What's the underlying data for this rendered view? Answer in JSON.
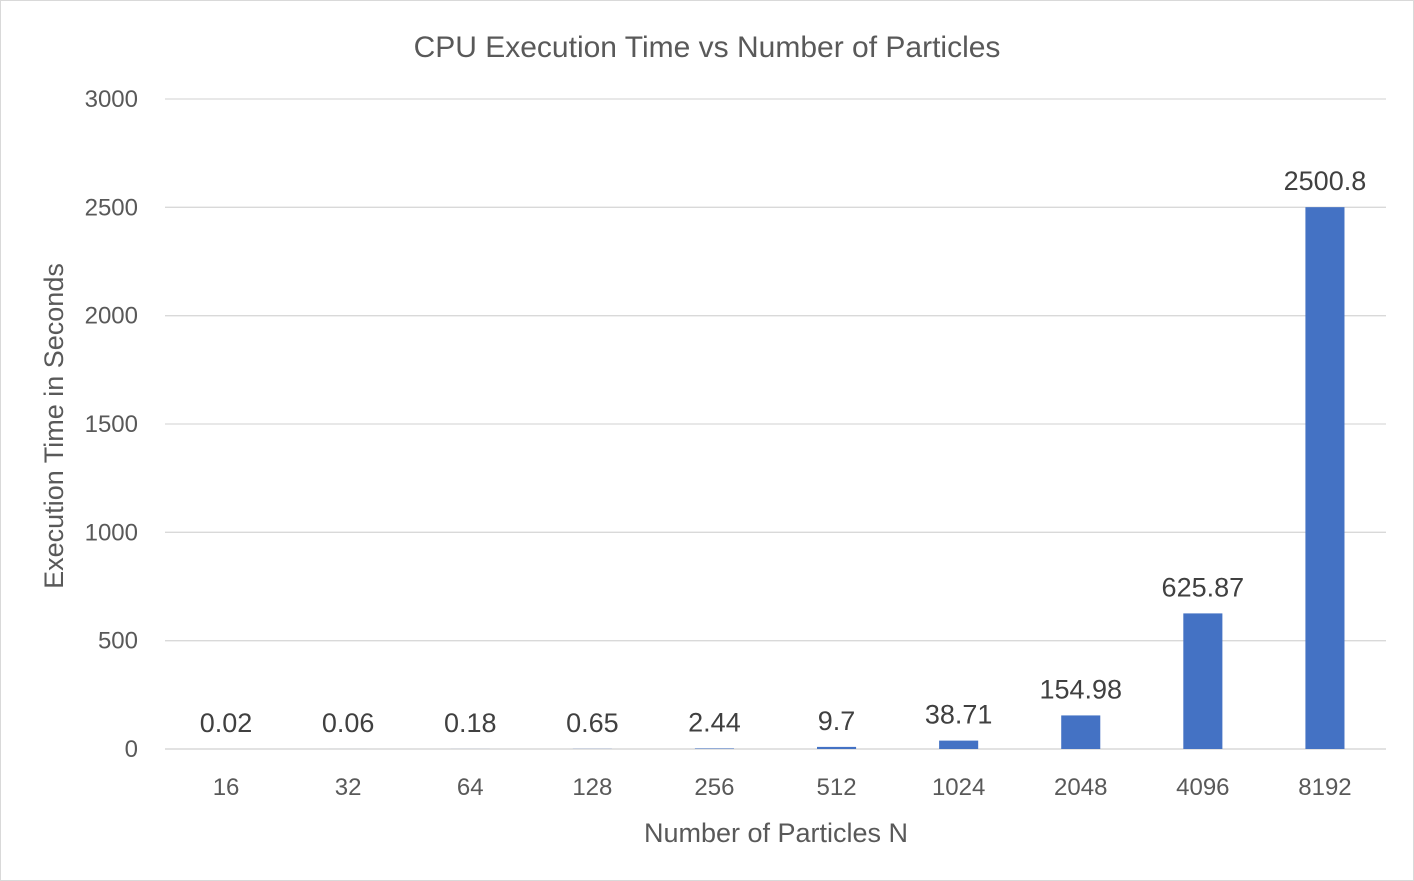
{
  "chart_data": {
    "type": "bar",
    "title": "CPU Execution Time vs Number of Particles",
    "xlabel": "Number of Particles N",
    "ylabel": "Execution Time in Seconds",
    "categories": [
      "16",
      "32",
      "64",
      "128",
      "256",
      "512",
      "1024",
      "2048",
      "4096",
      "8192"
    ],
    "values": [
      0.02,
      0.06,
      0.18,
      0.65,
      2.44,
      9.7,
      38.71,
      154.98,
      625.87,
      2500.8
    ],
    "data_labels": [
      "0.02",
      "0.06",
      "0.18",
      "0.65",
      "2.44",
      "9.7",
      "38.71",
      "154.98",
      "625.87",
      "2500.8"
    ],
    "ylim": [
      0,
      3000
    ],
    "yticks": [
      0,
      500,
      1000,
      1500,
      2000,
      2500,
      3000
    ],
    "grid": true,
    "legend": "none",
    "bar_color": "#4472C4"
  }
}
